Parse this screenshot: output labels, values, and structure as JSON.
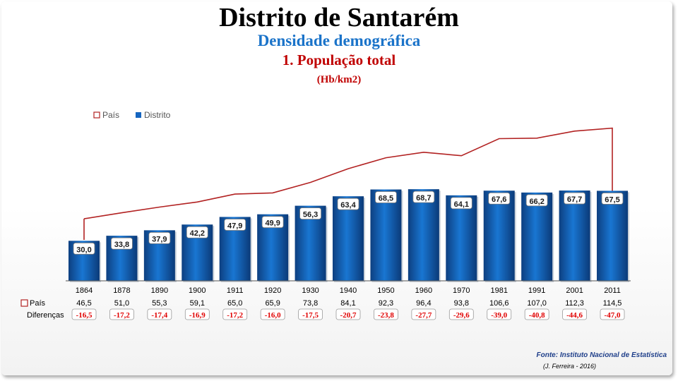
{
  "header": {
    "title": "Distrito de Santarém",
    "subtitle": "Densidade demográfica",
    "subtitle2": "1. População total",
    "units": "(Hb/km2)"
  },
  "row_labels": {
    "pais": "País",
    "diferencas": "Diferenças"
  },
  "footer": {
    "fonte": "Fonte: Instituto Nacional de Estatística",
    "autor": "(J. Ferreira - 2016)"
  },
  "colors": {
    "bar": "#1565c0",
    "pais_line": "#b22222",
    "diff_text": "#e00000"
  },
  "chart_data": {
    "type": "bar",
    "categories": [
      "1864",
      "1878",
      "1890",
      "1900",
      "1911",
      "1920",
      "1930",
      "1940",
      "1950",
      "1960",
      "1970",
      "1981",
      "1991",
      "2001",
      "2011"
    ],
    "series": [
      {
        "name": "Distrito",
        "type": "bar",
        "values": [
          30.0,
          33.8,
          37.9,
          42.2,
          47.9,
          49.9,
          56.3,
          63.4,
          68.5,
          68.7,
          64.1,
          67.6,
          66.2,
          67.7,
          67.5
        ],
        "labels": [
          "30,0",
          "33,8",
          "37,9",
          "42,2",
          "47,9",
          "49,9",
          "56,3",
          "63,4",
          "68,5",
          "68,7",
          "64,1",
          "67,6",
          "66,2",
          "67,7",
          "67,5"
        ]
      },
      {
        "name": "País",
        "type": "area-line",
        "values": [
          46.5,
          51.0,
          55.3,
          59.1,
          65.0,
          65.9,
          73.8,
          84.1,
          92.3,
          96.4,
          93.8,
          106.6,
          107.0,
          112.3,
          114.5
        ],
        "labels": [
          "46,5",
          "51,0",
          "55,3",
          "59,1",
          "65,0",
          "65,9",
          "73,8",
          "84,1",
          "92,3",
          "96,4",
          "93,8",
          "106,6",
          "107,0",
          "112,3",
          "114,5"
        ]
      }
    ],
    "differences": [
      "-16,5",
      "-17,2",
      "-17,4",
      "-16,9",
      "-17,2",
      "-16,0",
      "-17,5",
      "-20,7",
      "-23,8",
      "-27,7",
      "-29,6",
      "-39,0",
      "-40,8",
      "-44,6",
      "-47,0"
    ],
    "legend": "top-left",
    "grid": false
  }
}
